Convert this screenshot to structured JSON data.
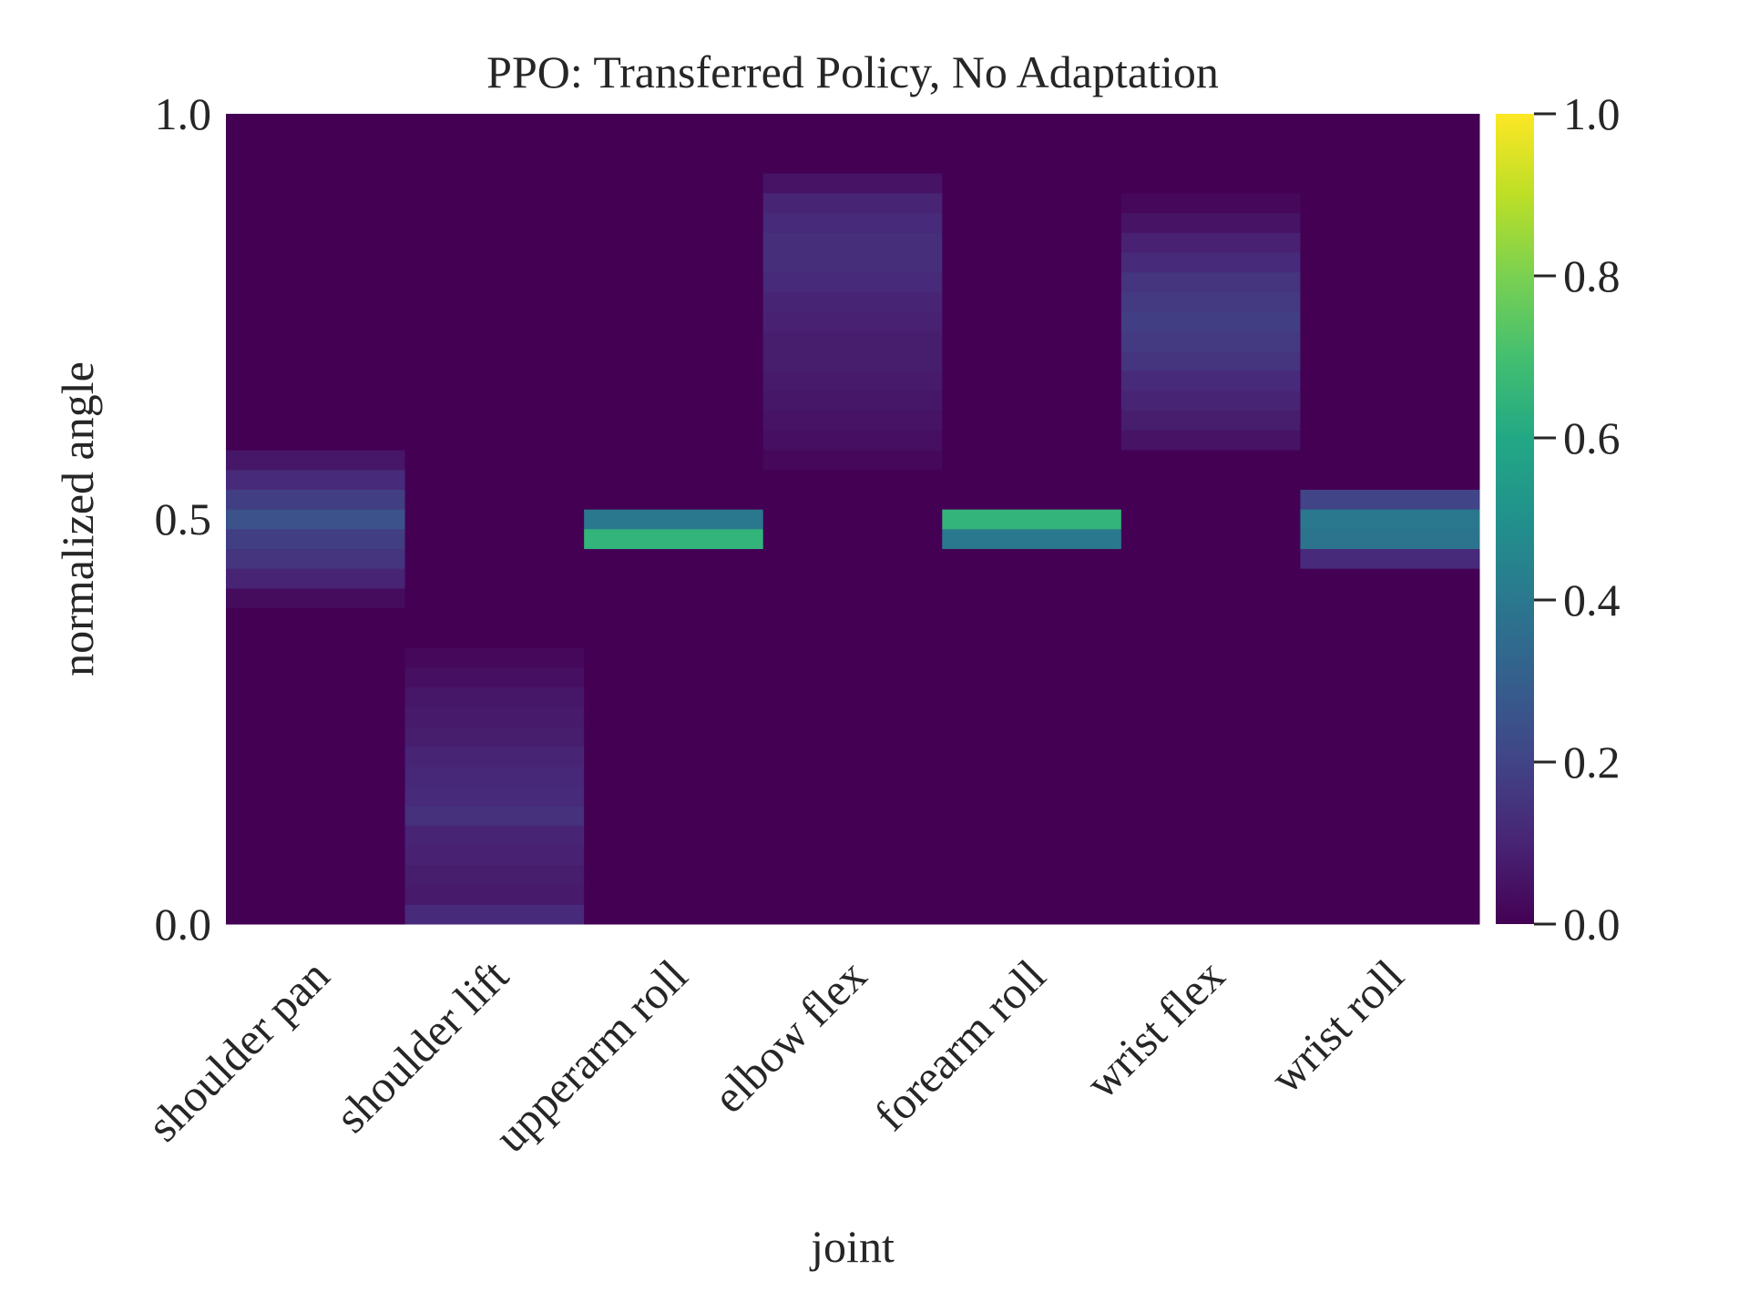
{
  "chart_data": {
    "type": "heatmap",
    "title": "PPO: Transferred Policy, No Adaptation",
    "x_label": "joint",
    "y_label": "normalized angle",
    "categories": [
      "shoulder pan",
      "shoulder lift",
      "upperarm roll",
      "elbow flex",
      "forearm roll",
      "wrist flex",
      "wrist roll"
    ],
    "values": [
      [
        0,
        0,
        0,
        0,
        0,
        0,
        0,
        0,
        0,
        0,
        0,
        0,
        0,
        0,
        0,
        0,
        0.03,
        0.1,
        0.15,
        0.18,
        0.25,
        0.18,
        0.12,
        0.06,
        0,
        0,
        0,
        0,
        0,
        0,
        0,
        0,
        0,
        0,
        0,
        0,
        0,
        0,
        0,
        0,
        0
      ],
      [
        0.12,
        0.07,
        0.08,
        0.09,
        0.1,
        0.14,
        0.12,
        0.11,
        0.1,
        0.08,
        0.07,
        0.06,
        0.04,
        0.02,
        0,
        0,
        0,
        0,
        0,
        0,
        0,
        0,
        0,
        0,
        0,
        0,
        0,
        0,
        0,
        0,
        0,
        0,
        0,
        0,
        0,
        0,
        0,
        0,
        0,
        0,
        0
      ],
      [
        0,
        0,
        0,
        0,
        0,
        0,
        0,
        0,
        0,
        0,
        0,
        0,
        0,
        0,
        0,
        0,
        0,
        0,
        0,
        0.65,
        0.4,
        0,
        0,
        0,
        0,
        0,
        0,
        0,
        0,
        0,
        0,
        0,
        0,
        0,
        0,
        0,
        0,
        0,
        0,
        0,
        0
      ],
      [
        0,
        0,
        0,
        0,
        0,
        0,
        0,
        0,
        0,
        0,
        0,
        0,
        0,
        0,
        0,
        0,
        0,
        0,
        0,
        0,
        0,
        0,
        0,
        0.02,
        0.04,
        0.05,
        0.06,
        0.07,
        0.08,
        0.08,
        0.09,
        0.1,
        0.12,
        0.13,
        0.13,
        0.12,
        0.1,
        0.05,
        0,
        0,
        0
      ],
      [
        0,
        0,
        0,
        0,
        0,
        0,
        0,
        0,
        0,
        0,
        0,
        0,
        0,
        0,
        0,
        0,
        0,
        0,
        0,
        0.4,
        0.65,
        0,
        0,
        0,
        0,
        0,
        0,
        0,
        0,
        0,
        0,
        0,
        0,
        0,
        0,
        0,
        0,
        0,
        0,
        0,
        0
      ],
      [
        0,
        0,
        0,
        0,
        0,
        0,
        0,
        0,
        0,
        0,
        0,
        0,
        0,
        0,
        0,
        0,
        0,
        0,
        0,
        0,
        0,
        0,
        0,
        0,
        0.05,
        0.08,
        0.1,
        0.12,
        0.15,
        0.17,
        0.18,
        0.17,
        0.15,
        0.12,
        0.09,
        0.05,
        0.02,
        0,
        0,
        0,
        0
      ],
      [
        0,
        0,
        0,
        0,
        0,
        0,
        0,
        0,
        0,
        0,
        0,
        0,
        0,
        0,
        0,
        0,
        0,
        0,
        0.12,
        0.38,
        0.4,
        0.2,
        0,
        0,
        0,
        0,
        0,
        0,
        0,
        0,
        0,
        0,
        0,
        0,
        0,
        0,
        0,
        0,
        0,
        0,
        0
      ]
    ],
    "ylim": [
      0,
      1
    ],
    "yticks": [
      {
        "value": 0,
        "label": "0.0"
      },
      {
        "value": 0.5,
        "label": "0.5"
      },
      {
        "value": 1,
        "label": "1.0"
      }
    ],
    "colormap": "viridis",
    "clim": [
      0,
      1
    ],
    "cticks": [
      {
        "value": 0,
        "label": "0.0"
      },
      {
        "value": 0.2,
        "label": "0.2"
      },
      {
        "value": 0.4,
        "label": "0.4"
      },
      {
        "value": 0.6,
        "label": "0.6"
      },
      {
        "value": 0.8,
        "label": "0.8"
      },
      {
        "value": 1,
        "label": "1.0"
      }
    ]
  }
}
